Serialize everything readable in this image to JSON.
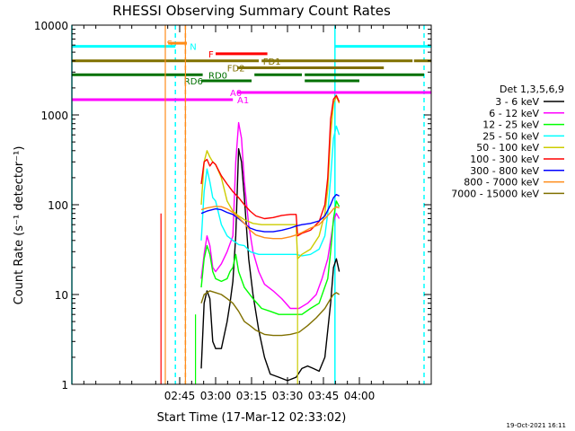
{
  "chart_data": {
    "type": "line",
    "title": "RHESSI Observing Summary Count Rates",
    "xlabel": "Start Time (17-Mar-12 02:33:02)",
    "ylabel": "Count Rate (s⁻¹ detector⁻¹)",
    "yscale": "log",
    "ylim": [
      1,
      10000
    ],
    "xlim_minutes": [
      2.0,
      4.5
    ],
    "x_ticks": [
      {
        "t": 2.75,
        "label": "02:45"
      },
      {
        "t": 3.0,
        "label": "03:00"
      },
      {
        "t": 3.25,
        "label": "03:15"
      },
      {
        "t": 3.5,
        "label": "03:30"
      },
      {
        "t": 3.75,
        "label": "03:45"
      },
      {
        "t": 4.0,
        "label": "04:00"
      }
    ],
    "y_ticks": [
      {
        "v": 1,
        "label": "1"
      },
      {
        "v": 10,
        "label": "10"
      },
      {
        "v": 100,
        "label": "100"
      },
      {
        "v": 1000,
        "label": "1000"
      },
      {
        "v": 10000,
        "label": "10000"
      }
    ],
    "legend_title": "Det 1,3,5,6,9",
    "series": [
      {
        "name": "3 - 6 keV",
        "color": "#000000",
        "points": [
          [
            2.88,
            null
          ],
          [
            2.9,
            1.5
          ],
          [
            2.92,
            8
          ],
          [
            2.94,
            11
          ],
          [
            2.96,
            9
          ],
          [
            2.98,
            3
          ],
          [
            3.0,
            2.5
          ],
          [
            3.04,
            2.5
          ],
          [
            3.08,
            5
          ],
          [
            3.1,
            8
          ],
          [
            3.12,
            14
          ],
          [
            3.14,
            45
          ],
          [
            3.16,
            420
          ],
          [
            3.18,
            300
          ],
          [
            3.2,
            120
          ],
          [
            3.23,
            25
          ],
          [
            3.26,
            10
          ],
          [
            3.3,
            4
          ],
          [
            3.34,
            2
          ],
          [
            3.38,
            1.3
          ],
          [
            3.44,
            1.2
          ],
          [
            3.5,
            1.1
          ],
          [
            3.56,
            1.2
          ],
          [
            3.6,
            1.5
          ],
          [
            3.64,
            1.6
          ],
          [
            3.68,
            1.5
          ],
          [
            3.72,
            1.4
          ],
          [
            3.76,
            2
          ],
          [
            3.8,
            8
          ],
          [
            3.82,
            20
          ],
          [
            3.84,
            25
          ],
          [
            3.86,
            18
          ]
        ]
      },
      {
        "name": "6 - 12 keV",
        "color": "#ff00ff",
        "points": [
          [
            2.88,
            null
          ],
          [
            2.9,
            15
          ],
          [
            2.92,
            28
          ],
          [
            2.94,
            45
          ],
          [
            2.96,
            35
          ],
          [
            2.98,
            20
          ],
          [
            3.0,
            18
          ],
          [
            3.04,
            22
          ],
          [
            3.08,
            30
          ],
          [
            3.12,
            45
          ],
          [
            3.14,
            300
          ],
          [
            3.16,
            820
          ],
          [
            3.18,
            550
          ],
          [
            3.2,
            180
          ],
          [
            3.23,
            60
          ],
          [
            3.26,
            30
          ],
          [
            3.3,
            18
          ],
          [
            3.34,
            13
          ],
          [
            3.4,
            11
          ],
          [
            3.46,
            9
          ],
          [
            3.52,
            7
          ],
          [
            3.58,
            7
          ],
          [
            3.64,
            8
          ],
          [
            3.7,
            10
          ],
          [
            3.74,
            15
          ],
          [
            3.78,
            25
          ],
          [
            3.8,
            40
          ],
          [
            3.82,
            65
          ],
          [
            3.84,
            80
          ],
          [
            3.86,
            70
          ]
        ]
      },
      {
        "name": "12 - 25 keV",
        "color": "#00ff00",
        "points": [
          [
            2.88,
            null
          ],
          [
            2.9,
            12
          ],
          [
            2.92,
            25
          ],
          [
            2.94,
            35
          ],
          [
            2.96,
            28
          ],
          [
            2.98,
            18
          ],
          [
            3.0,
            15
          ],
          [
            3.04,
            14
          ],
          [
            3.08,
            15
          ],
          [
            3.1,
            18
          ],
          [
            3.12,
            20
          ],
          [
            3.14,
            28
          ],
          [
            3.16,
            18
          ],
          [
            3.2,
            12
          ],
          [
            3.26,
            9
          ],
          [
            3.32,
            7
          ],
          [
            3.38,
            6.5
          ],
          [
            3.44,
            6
          ],
          [
            3.5,
            6
          ],
          [
            3.56,
            6
          ],
          [
            3.6,
            6
          ],
          [
            3.66,
            7
          ],
          [
            3.72,
            8
          ],
          [
            3.78,
            15
          ],
          [
            3.8,
            30
          ],
          [
            3.82,
            70
          ],
          [
            3.84,
            110
          ],
          [
            3.86,
            95
          ]
        ]
      },
      {
        "name": "25 - 50 keV",
        "color": "#00ffff",
        "points": [
          [
            2.88,
            null
          ],
          [
            2.9,
            40
          ],
          [
            2.92,
            140
          ],
          [
            2.94,
            250
          ],
          [
            2.96,
            180
          ],
          [
            2.98,
            120
          ],
          [
            3.0,
            110
          ],
          [
            3.04,
            60
          ],
          [
            3.08,
            45
          ],
          [
            3.12,
            40
          ],
          [
            3.14,
            38
          ],
          [
            3.16,
            36
          ],
          [
            3.2,
            35
          ],
          [
            3.24,
            30
          ],
          [
            3.3,
            28
          ],
          [
            3.4,
            28
          ],
          [
            3.5,
            28
          ],
          [
            3.56,
            28
          ],
          [
            3.6,
            27
          ],
          [
            3.66,
            28
          ],
          [
            3.72,
            32
          ],
          [
            3.76,
            45
          ],
          [
            3.78,
            80
          ],
          [
            3.8,
            200
          ],
          [
            3.82,
            550
          ],
          [
            3.84,
            750
          ],
          [
            3.86,
            600
          ]
        ]
      },
      {
        "name": "50 - 100 keV",
        "color": "#cccc00",
        "points": [
          [
            2.88,
            null
          ],
          [
            2.9,
            100
          ],
          [
            2.92,
            300
          ],
          [
            2.94,
            400
          ],
          [
            2.96,
            340
          ],
          [
            2.98,
            300
          ],
          [
            3.0,
            280
          ],
          [
            3.04,
            200
          ],
          [
            3.08,
            110
          ],
          [
            3.12,
            85
          ],
          [
            3.16,
            75
          ],
          [
            3.2,
            68
          ],
          [
            3.26,
            62
          ],
          [
            3.32,
            60
          ],
          [
            3.4,
            60
          ],
          [
            3.48,
            60
          ],
          [
            3.56,
            60
          ],
          [
            3.57,
            25
          ],
          [
            3.6,
            28
          ],
          [
            3.66,
            32
          ],
          [
            3.72,
            45
          ],
          [
            3.76,
            80
          ],
          [
            3.78,
            150
          ],
          [
            3.8,
            600
          ],
          [
            3.82,
            1350
          ],
          [
            3.84,
            1600
          ],
          [
            3.86,
            1350
          ]
        ]
      },
      {
        "name": "100 - 300 keV",
        "color": "#ff0000",
        "points": [
          [
            2.88,
            null
          ],
          [
            2.9,
            170
          ],
          [
            2.92,
            300
          ],
          [
            2.94,
            320
          ],
          [
            2.96,
            270
          ],
          [
            2.98,
            300
          ],
          [
            3.0,
            280
          ],
          [
            3.04,
            210
          ],
          [
            3.08,
            170
          ],
          [
            3.12,
            140
          ],
          [
            3.16,
            120
          ],
          [
            3.2,
            100
          ],
          [
            3.24,
            85
          ],
          [
            3.28,
            75
          ],
          [
            3.34,
            70
          ],
          [
            3.4,
            72
          ],
          [
            3.46,
            76
          ],
          [
            3.52,
            78
          ],
          [
            3.56,
            78
          ],
          [
            3.57,
            45
          ],
          [
            3.6,
            48
          ],
          [
            3.66,
            52
          ],
          [
            3.72,
            65
          ],
          [
            3.76,
            100
          ],
          [
            3.78,
            200
          ],
          [
            3.8,
            900
          ],
          [
            3.82,
            1500
          ],
          [
            3.84,
            1650
          ],
          [
            3.86,
            1400
          ]
        ]
      },
      {
        "name": "300 - 800 keV",
        "color": "#0000ff",
        "points": [
          [
            2.88,
            null
          ],
          [
            2.9,
            80
          ],
          [
            2.94,
            85
          ],
          [
            3.0,
            90
          ],
          [
            3.04,
            88
          ],
          [
            3.08,
            82
          ],
          [
            3.12,
            78
          ],
          [
            3.16,
            70
          ],
          [
            3.2,
            62
          ],
          [
            3.24,
            55
          ],
          [
            3.28,
            52
          ],
          [
            3.34,
            50
          ],
          [
            3.4,
            50
          ],
          [
            3.46,
            52
          ],
          [
            3.52,
            55
          ],
          [
            3.56,
            58
          ],
          [
            3.6,
            60
          ],
          [
            3.66,
            62
          ],
          [
            3.72,
            66
          ],
          [
            3.76,
            75
          ],
          [
            3.8,
            100
          ],
          [
            3.82,
            120
          ],
          [
            3.84,
            130
          ],
          [
            3.86,
            125
          ]
        ]
      },
      {
        "name": "800 - 7000 keV",
        "color": "#ff8c1a",
        "points": [
          [
            2.88,
            null
          ],
          [
            2.9,
            88
          ],
          [
            2.94,
            92
          ],
          [
            3.0,
            96
          ],
          [
            3.04,
            95
          ],
          [
            3.08,
            90
          ],
          [
            3.12,
            82
          ],
          [
            3.16,
            72
          ],
          [
            3.2,
            62
          ],
          [
            3.24,
            52
          ],
          [
            3.28,
            46
          ],
          [
            3.34,
            43
          ],
          [
            3.4,
            42
          ],
          [
            3.46,
            42
          ],
          [
            3.52,
            44
          ],
          [
            3.56,
            46
          ],
          [
            3.6,
            49
          ],
          [
            3.66,
            55
          ],
          [
            3.72,
            60
          ],
          [
            3.76,
            70
          ],
          [
            3.8,
            82
          ],
          [
            3.82,
            90
          ],
          [
            3.84,
            95
          ],
          [
            3.86,
            92
          ]
        ]
      },
      {
        "name": "7000 - 15000 keV",
        "color": "#807000",
        "points": [
          [
            2.88,
            null
          ],
          [
            2.9,
            8
          ],
          [
            2.92,
            10
          ],
          [
            2.96,
            11
          ],
          [
            3.0,
            10.5
          ],
          [
            3.04,
            10
          ],
          [
            3.08,
            9
          ],
          [
            3.12,
            8
          ],
          [
            3.16,
            6.5
          ],
          [
            3.2,
            5
          ],
          [
            3.24,
            4.5
          ],
          [
            3.28,
            4
          ],
          [
            3.34,
            3.6
          ],
          [
            3.4,
            3.5
          ],
          [
            3.46,
            3.5
          ],
          [
            3.52,
            3.6
          ],
          [
            3.58,
            3.8
          ],
          [
            3.64,
            4.5
          ],
          [
            3.7,
            5.5
          ],
          [
            3.76,
            7
          ],
          [
            3.8,
            9
          ],
          [
            3.82,
            10
          ],
          [
            3.84,
            10.5
          ],
          [
            3.86,
            10
          ]
        ]
      }
    ],
    "flag_bars": [
      {
        "label": "S",
        "color": "#ff8c1a",
        "label_t": 2.66,
        "row_v": 6300,
        "segments": [
          [
            2.67,
            2.8
          ]
        ]
      },
      {
        "label": "N",
        "color": "#00ffff",
        "label_t": 2.82,
        "row_v": 5800,
        "segments": [
          [
            2.0,
            2.72
          ],
          [
            3.83,
            4.5
          ]
        ]
      },
      {
        "label": "F",
        "color": "#ff0000",
        "label_t": 2.95,
        "row_v": 4800,
        "segments": [
          [
            3.0,
            3.36
          ]
        ]
      },
      {
        "label": "FD1",
        "color": "#807000",
        "label_t": 3.33,
        "row_v": 4000,
        "segments": [
          [
            2.0,
            3.3
          ],
          [
            3.32,
            4.37
          ],
          [
            4.38,
            4.5
          ]
        ]
      },
      {
        "label": "FD2",
        "color": "#807000",
        "label_t": 3.08,
        "row_v": 3350,
        "segments": [
          [
            3.15,
            4.17
          ]
        ]
      },
      {
        "label": "RD0",
        "color": "#007000",
        "label_t": 2.95,
        "row_v": 2800,
        "segments": [
          [
            2.0,
            2.91
          ],
          [
            3.27,
            3.6
          ],
          [
            3.62,
            4.45
          ]
        ]
      },
      {
        "label": "RD6",
        "color": "#007000",
        "label_t": 2.78,
        "row_v": 2400,
        "segments": [
          [
            2.9,
            3.25
          ],
          [
            3.62,
            4.0
          ]
        ]
      },
      {
        "label": "A0",
        "color": "#ff00ff",
        "label_t": 3.1,
        "row_v": 1780,
        "segments": [
          [
            3.15,
            4.5
          ]
        ]
      },
      {
        "label": "A1",
        "color": "#ff00ff",
        "label_t": 3.15,
        "row_v": 1480,
        "segments": [
          [
            2.0,
            3.12
          ]
        ]
      }
    ],
    "vertical_markers": [
      {
        "t": 2.0,
        "color": "#00ffff",
        "style": "solid"
      },
      {
        "t": 2.72,
        "color": "#00ffff",
        "style": "dashed"
      },
      {
        "t": 2.79,
        "color": "#ff8c1a",
        "style": "dashed"
      },
      {
        "t": 3.83,
        "color": "#00ffff",
        "style": "solid"
      },
      {
        "t": 4.45,
        "color": "#00ffff",
        "style": "dashed"
      }
    ],
    "spikes": [
      {
        "t": 2.62,
        "v_top": 80,
        "color": "#ff0000"
      },
      {
        "t": 2.65,
        "v_top": 10000,
        "color": "#ff8c1a"
      },
      {
        "t": 2.79,
        "v_top": 10000,
        "color": "#ff8c1a"
      },
      {
        "t": 2.86,
        "v_top": 6,
        "color": "#00ff00"
      },
      {
        "t": 3.57,
        "v_top": 30,
        "color": "#cccc00"
      }
    ],
    "timestamp": "19-Oct-2021 16:11"
  }
}
